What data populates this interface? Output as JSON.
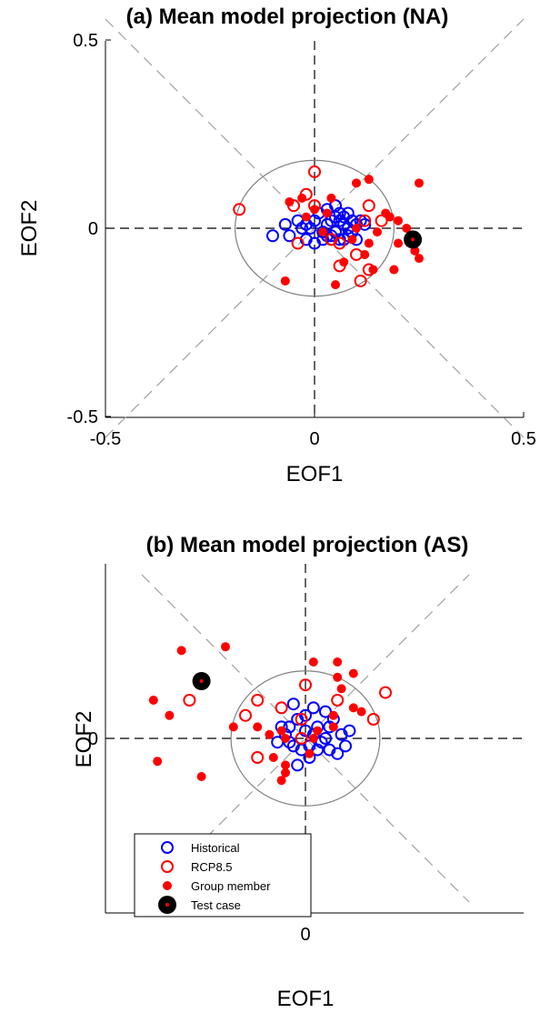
{
  "colors": {
    "historical": "#0000ff",
    "rcp85": "#ff0000",
    "group": "#ff0000",
    "test": "#000000",
    "circle": "#808080",
    "diagonal": "#a0a0a0",
    "axes": "#000000"
  },
  "chart_data": [
    {
      "type": "scatter",
      "title": "(a) Mean model projection (NA)",
      "xlabel": "EOF1",
      "ylabel": "EOF2",
      "xlim": [
        -0.5,
        0.5
      ],
      "ylim": [
        -0.5,
        0.5
      ],
      "xticks": [
        "-0.5",
        "0",
        "0.5"
      ],
      "yticks": [
        "-0.5",
        "0",
        "0.5"
      ],
      "xtick_values": [
        -0.5,
        0,
        0.5
      ],
      "ytick_values": [
        -0.5,
        0,
        0.5
      ],
      "reference_circle_radius": 0.19,
      "legend": "none",
      "series": [
        {
          "name": "Historical",
          "marker": "open-circle",
          "color": "#0000ff",
          "points": [
            [
              -0.06,
              -0.02
            ],
            [
              -0.04,
              0.02
            ],
            [
              -0.03,
              0.0
            ],
            [
              -0.02,
              0.01
            ],
            [
              -0.01,
              0.0
            ],
            [
              0.0,
              0.02
            ],
            [
              0.02,
              -0.01
            ],
            [
              0.03,
              0.01
            ],
            [
              0.04,
              0.02
            ],
            [
              0.05,
              0.03
            ],
            [
              0.06,
              0.02
            ],
            [
              0.07,
              0.01
            ],
            [
              0.08,
              0.0
            ],
            [
              0.05,
              -0.01
            ],
            [
              0.04,
              -0.02
            ],
            [
              0.06,
              0.04
            ],
            [
              0.03,
              0.05
            ],
            [
              0.07,
              0.03
            ],
            [
              0.09,
              0.02
            ],
            [
              0.1,
              0.01
            ],
            [
              0.02,
              -0.03
            ],
            [
              0.0,
              -0.04
            ],
            [
              -0.02,
              -0.03
            ],
            [
              0.08,
              -0.02
            ],
            [
              0.06,
              -0.03
            ],
            [
              0.09,
              -0.01
            ],
            [
              0.11,
              0.02
            ],
            [
              0.05,
              0.06
            ],
            [
              -0.1,
              -0.02
            ],
            [
              -0.07,
              0.01
            ],
            [
              0.01,
              0.04
            ],
            [
              0.12,
              0.01
            ],
            [
              0.03,
              -0.02
            ],
            [
              0.07,
              -0.03
            ],
            [
              0.1,
              -0.03
            ],
            [
              0.08,
              0.04
            ]
          ]
        },
        {
          "name": "RCP8.5",
          "marker": "open-circle",
          "color": "#ff0000",
          "points": [
            [
              -0.18,
              0.05
            ],
            [
              0.0,
              0.15
            ],
            [
              -0.02,
              0.09
            ],
            [
              -0.05,
              0.06
            ],
            [
              0.06,
              -0.1
            ],
            [
              0.11,
              -0.14
            ],
            [
              0.13,
              -0.11
            ],
            [
              0.06,
              -0.04
            ],
            [
              0.13,
              0.06
            ],
            [
              -0.04,
              -0.04
            ],
            [
              0.0,
              0.06
            ],
            [
              0.04,
              -0.03
            ],
            [
              0.12,
              0.02
            ],
            [
              0.1,
              -0.07
            ],
            [
              0.16,
              0.02
            ]
          ]
        },
        {
          "name": "Group member",
          "marker": "filled-dot",
          "color": "#ff0000",
          "points": [
            [
              0.25,
              0.12
            ],
            [
              0.13,
              0.13
            ],
            [
              0.1,
              0.12
            ],
            [
              0.04,
              0.08
            ],
            [
              -0.06,
              0.07
            ],
            [
              0.17,
              0.04
            ],
            [
              0.2,
              0.02
            ],
            [
              0.18,
              0.03
            ],
            [
              0.22,
              0.0
            ],
            [
              0.2,
              -0.04
            ],
            [
              0.24,
              -0.06
            ],
            [
              0.25,
              -0.08
            ],
            [
              0.19,
              -0.11
            ],
            [
              0.14,
              -0.11
            ],
            [
              0.12,
              -0.07
            ],
            [
              0.07,
              -0.09
            ],
            [
              0.05,
              -0.15
            ],
            [
              -0.07,
              -0.14
            ],
            [
              0.09,
              -0.03
            ],
            [
              0.13,
              -0.04
            ],
            [
              0.15,
              -0.01
            ],
            [
              0.0,
              0.05
            ],
            [
              -0.02,
              0.03
            ],
            [
              0.03,
              0.04
            ],
            [
              0.02,
              -0.01
            ],
            [
              0.1,
              0.0
            ],
            [
              0.23,
              -0.03
            ],
            [
              -0.03,
              0.08
            ]
          ]
        },
        {
          "name": "Test case",
          "marker": "black-ring",
          "color": "#000000",
          "points": [
            [
              0.235,
              -0.03
            ]
          ]
        }
      ]
    },
    {
      "type": "scatter",
      "title": "(b) Mean model projection (AS)",
      "xlabel": "EOF1",
      "ylabel": "EOF2",
      "xlim": [
        -0.5,
        0.5
      ],
      "ylim": [
        -0.5,
        0.5
      ],
      "xticks": [
        "0"
      ],
      "yticks": [
        "0"
      ],
      "xtick_values": [
        0
      ],
      "ytick_values": [
        0
      ],
      "reference_circle_radius": 0.19,
      "legend": "bottom-left",
      "series": [
        {
          "name": "Historical",
          "marker": "open-circle",
          "color": "#0000ff",
          "points": [
            [
              -0.06,
              0.03
            ],
            [
              -0.04,
              -0.01
            ],
            [
              -0.02,
              0.05
            ],
            [
              0.0,
              0.02
            ],
            [
              0.02,
              0.01
            ],
            [
              0.03,
              0.03
            ],
            [
              0.04,
              -0.01
            ],
            [
              0.05,
              0.0
            ],
            [
              0.03,
              -0.03
            ],
            [
              0.01,
              -0.05
            ],
            [
              -0.01,
              -0.03
            ],
            [
              -0.03,
              -0.02
            ],
            [
              0.06,
              0.03
            ],
            [
              0.07,
              0.05
            ],
            [
              0.09,
              0.01
            ],
            [
              0.1,
              -0.02
            ],
            [
              0.08,
              -0.04
            ],
            [
              -0.05,
              0.01
            ],
            [
              0.0,
              0.06
            ],
            [
              0.02,
              0.08
            ],
            [
              -0.02,
              -0.07
            ],
            [
              -0.04,
              0.03
            ],
            [
              0.06,
              -0.03
            ],
            [
              0.11,
              0.02
            ],
            [
              -0.03,
              0.09
            ],
            [
              0.05,
              0.07
            ],
            [
              0.01,
              -0.02
            ],
            [
              -0.07,
              -0.01
            ]
          ]
        },
        {
          "name": "RCP8.5",
          "marker": "open-circle",
          "color": "#ff0000",
          "points": [
            [
              -0.29,
              0.1
            ],
            [
              -0.15,
              0.06
            ],
            [
              -0.12,
              -0.05
            ],
            [
              -0.12,
              0.1
            ],
            [
              -0.06,
              0.08
            ],
            [
              -0.01,
              0.05
            ],
            [
              0.0,
              0.14
            ],
            [
              0.08,
              0.1
            ],
            [
              0.17,
              0.05
            ],
            [
              0.2,
              0.12
            ],
            [
              -0.01,
              0.0
            ]
          ]
        },
        {
          "name": "Group member",
          "marker": "filled-dot",
          "color": "#ff0000",
          "points": [
            [
              -0.31,
              0.23
            ],
            [
              -0.2,
              0.24
            ],
            [
              -0.38,
              0.1
            ],
            [
              -0.34,
              0.06
            ],
            [
              -0.37,
              -0.06
            ],
            [
              -0.26,
              -0.1
            ],
            [
              -0.18,
              0.03
            ],
            [
              -0.12,
              0.03
            ],
            [
              -0.06,
              0.02
            ],
            [
              -0.09,
              0.01
            ],
            [
              -0.08,
              -0.05
            ],
            [
              -0.05,
              0.0
            ],
            [
              -0.05,
              -0.07
            ],
            [
              -0.05,
              -0.09
            ],
            [
              -0.06,
              -0.11
            ],
            [
              0.02,
              0.2
            ],
            [
              0.08,
              0.2
            ],
            [
              0.08,
              0.16
            ],
            [
              0.12,
              0.17
            ],
            [
              0.12,
              0.08
            ],
            [
              0.07,
              0.03
            ],
            [
              0.02,
              0.0
            ],
            [
              0.03,
              0.02
            ],
            [
              0.01,
              -0.04
            ],
            [
              0.07,
              0.06
            ],
            [
              0.09,
              0.13
            ],
            [
              0.14,
              0.07
            ]
          ]
        },
        {
          "name": "Test case",
          "marker": "black-ring",
          "color": "#000000",
          "points": [
            [
              -0.26,
              0.15
            ]
          ]
        }
      ]
    }
  ],
  "legend": {
    "items": [
      {
        "label": "Historical",
        "marker": "open-circle",
        "color": "#0000ff"
      },
      {
        "label": "RCP8.5",
        "marker": "open-circle",
        "color": "#ff0000"
      },
      {
        "label": "Group member",
        "marker": "filled-dot",
        "color": "#ff0000"
      },
      {
        "label": "Test case",
        "marker": "black-ring",
        "color": "#000000"
      }
    ]
  }
}
